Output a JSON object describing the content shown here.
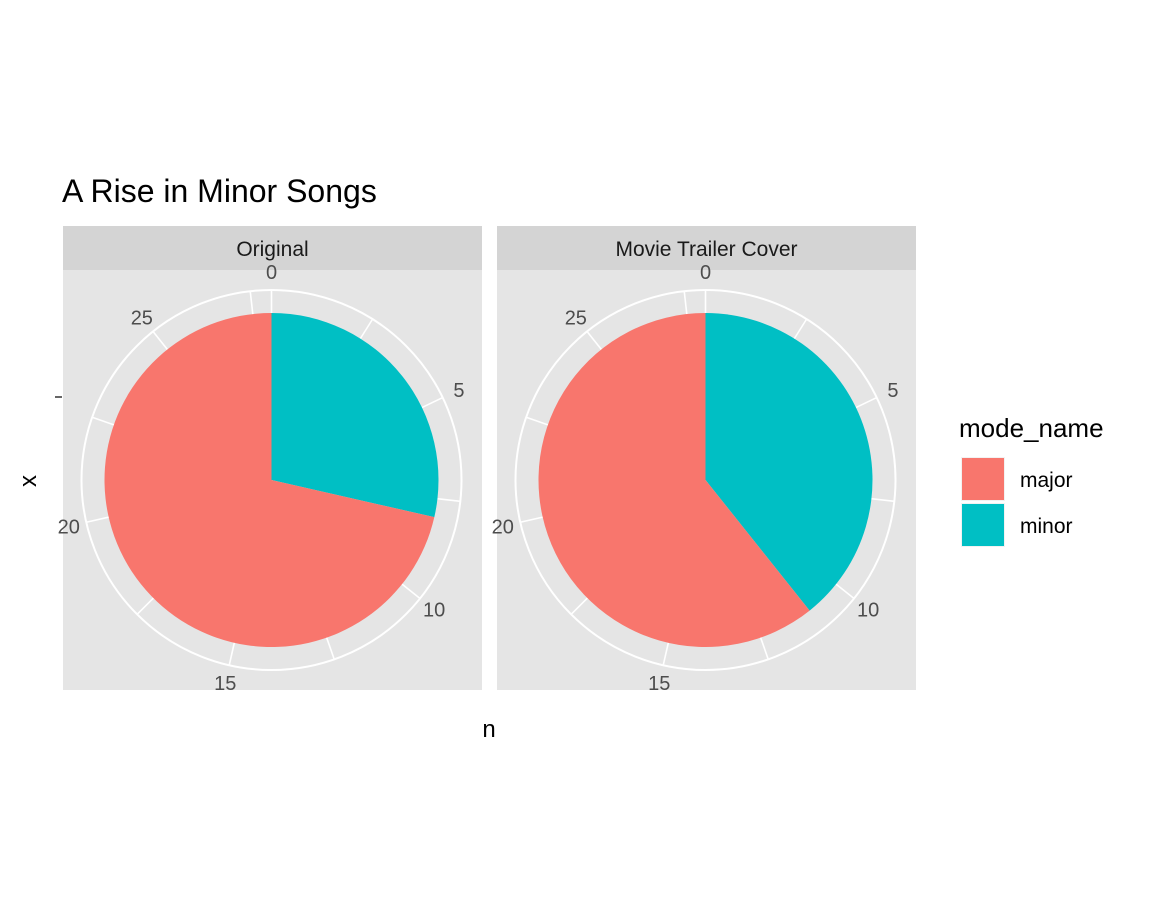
{
  "chart_data": {
    "type": "pie",
    "title": "A Rise in Minor Songs",
    "xlabel": "n",
    "ylabel": "x",
    "y_tick_labels": [
      ""
    ],
    "theta_ticks": [
      0,
      5,
      10,
      15,
      20,
      25
    ],
    "theta_tick_labels": [
      "0",
      "5",
      "10",
      "15",
      "20",
      "25"
    ],
    "legend": {
      "title": "mode_name",
      "position": "right",
      "entries": [
        {
          "name": "major",
          "color": "#F8766D"
        },
        {
          "name": "minor",
          "color": "#00BFC4"
        }
      ]
    },
    "grid": true,
    "facets": [
      {
        "label": "Original",
        "total": 28,
        "slices": [
          {
            "category": "minor",
            "value": 8
          },
          {
            "category": "major",
            "value": 20
          }
        ]
      },
      {
        "label": "Movie Trailer Cover",
        "total": 28,
        "slices": [
          {
            "category": "minor",
            "value": 11
          },
          {
            "category": "major",
            "value": 17
          }
        ]
      }
    ]
  },
  "colors": {
    "panel_background": "#E5E5E5",
    "strip_background": "#D4D4D4",
    "grid": "#FFFFFF",
    "major": "#F8766D",
    "minor": "#00BFC4"
  }
}
